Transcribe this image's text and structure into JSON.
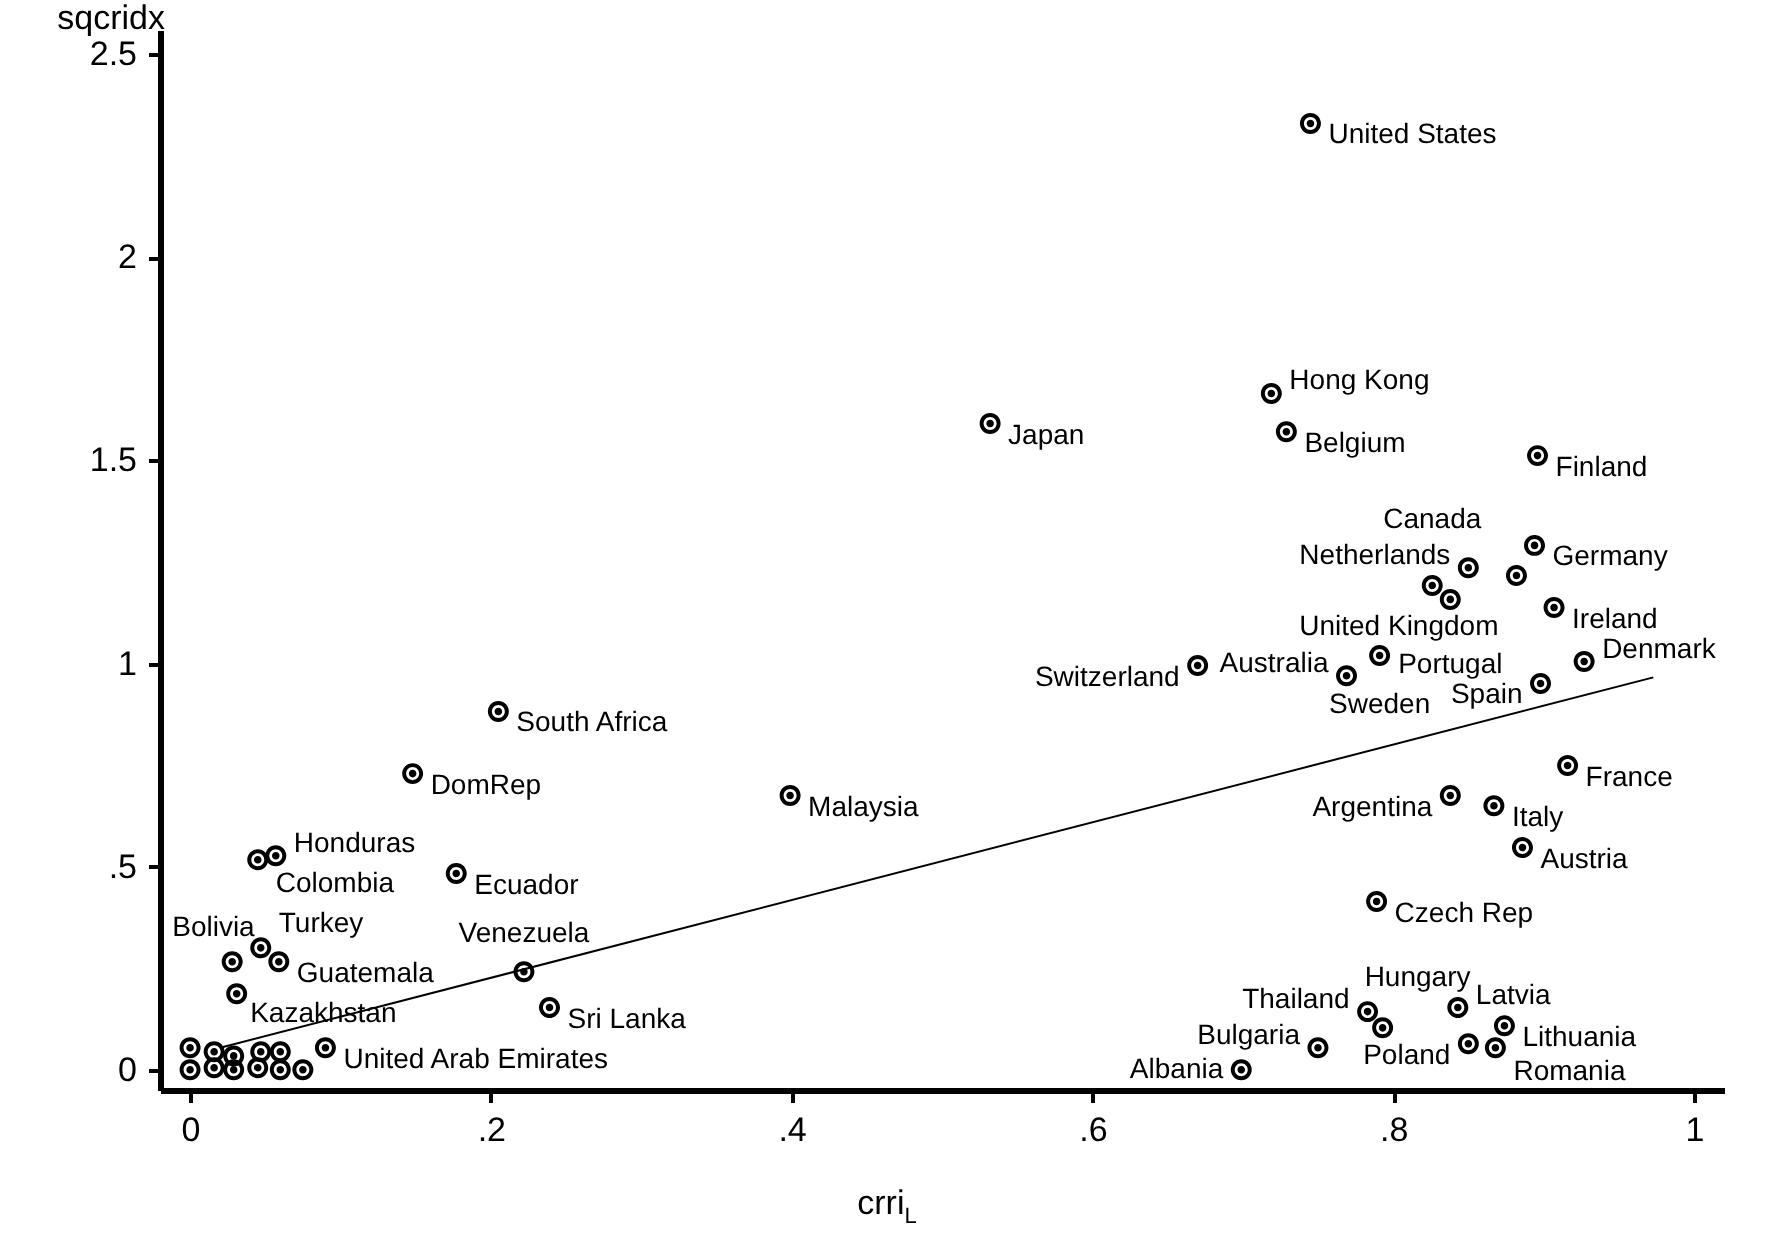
{
  "chart_data": {
    "type": "scatter",
    "xlabel": "crri$_{L}$",
    "ylabel": "sqcridx",
    "xlim": [
      -0.02,
      1.02
    ],
    "ylim": [
      -0.05,
      2.56
    ],
    "xticks": [
      0,
      {
        "value": 0.2,
        "label": ".2"
      },
      {
        "value": 0.4,
        "label": ".4"
      },
      {
        "value": 0.6,
        "label": ".6"
      },
      {
        "value": 0.8,
        "label": ".8"
      },
      1
    ],
    "yticks": [
      0,
      {
        "value": 0.5,
        "label": ".5"
      },
      1,
      1.5,
      2,
      2.5
    ],
    "grid": false,
    "series": [
      {
        "color": "#000000",
        "marker": "circle",
        "x": [
          0.745,
          0.719,
          0.729,
          0.896,
          0.532,
          0.894,
          0.85,
          0.882,
          0.826,
          0.838,
          0.907,
          0.791,
          0.67,
          0.769,
          0.927,
          0.898,
          0.916,
          0.838,
          0.867,
          0.886,
          0.789,
          0.783,
          0.793,
          0.843,
          0.874,
          0.85,
          0.868,
          0.75,
          0.699,
          0.399,
          0.205,
          0.148,
          0.177,
          0.057,
          0.045,
          0.047,
          0.059,
          0.028,
          0.031,
          0.222,
          0.239,
          0.09,
          0.0,
          0.0,
          0.016,
          0.029,
          0.047,
          0.06,
          0.016,
          0.029,
          0.045,
          0.06,
          0.075
        ],
        "values": [
          2.33,
          1.665,
          1.571,
          1.512,
          1.591,
          1.291,
          1.236,
          1.217,
          1.192,
          1.158,
          1.138,
          1.02,
          0.995,
          0.97,
          1.005,
          0.951,
          0.749,
          0.675,
          0.65,
          0.547,
          0.414,
          0.143,
          0.103,
          0.153,
          0.108,
          0.064,
          0.054,
          0.054,
          0.0,
          0.675,
          0.882,
          0.729,
          0.483,
          0.527,
          0.517,
          0.3,
          0.266,
          0.266,
          0.187,
          0.241,
          0.153,
          0.054,
          0.054,
          0.0,
          0.044,
          0.034,
          0.044,
          0.044,
          0.005,
          0.0,
          0.005,
          0.0,
          0.0
        ],
        "value_labels": [
          "United States",
          "Hong Kong",
          "Belgium",
          "Finland",
          "Japan",
          "Germany",
          "Netherlands",
          "United Kingdom",
          "Canada",
          "Portugal",
          "Ireland",
          "Sweden",
          "Switzerland",
          "Australia",
          "Denmark",
          "Spain",
          "France",
          "Argentina",
          "Italy",
          "Austria",
          "Czech Rep",
          "Thailand",
          "Hungary",
          "Latvia",
          "Lithuania",
          "Poland",
          "Romania",
          "Bulgaria",
          "Albania",
          "Malaysia",
          "South Africa",
          "DomRep",
          "Ecuador",
          "Honduras",
          "Colombia",
          "Turkey",
          "Guatemala",
          "Kazakhstan",
          "Bolivia",
          "Venezuela",
          "Sri Lanka",
          "United Arab Emirates",
          null,
          null,
          null,
          null,
          null,
          null,
          null,
          null,
          null,
          null,
          null
        ]
      },
      {
        "type": "line",
        "color": "#000000",
        "line_style": "solid",
        "x": [
          0.02,
          0.973
        ],
        "values": [
          0.054,
          0.966
        ]
      }
    ]
  }
}
